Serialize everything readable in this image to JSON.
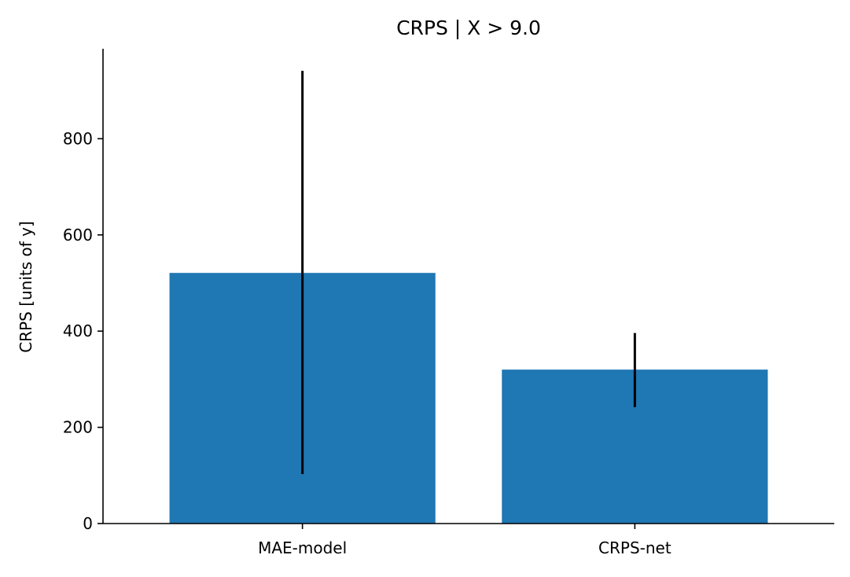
{
  "chart_data": {
    "type": "bar",
    "title": "CRPS | X > 9.0",
    "xlabel": "",
    "ylabel": "CRPS [units of y]",
    "categories": [
      "MAE-model",
      "CRPS-net"
    ],
    "values": [
      521,
      320
    ],
    "error_bars": [
      {
        "low": 103,
        "high": 941
      },
      {
        "low": 242,
        "high": 396
      }
    ],
    "ylim": [
      0,
      987
    ],
    "yticks": [
      0,
      200,
      400,
      600,
      800
    ],
    "grid": false,
    "legend": "none",
    "colors": {
      "bar": "#1f77b4",
      "error_bar": "#000000",
      "axis": "#000000"
    }
  }
}
